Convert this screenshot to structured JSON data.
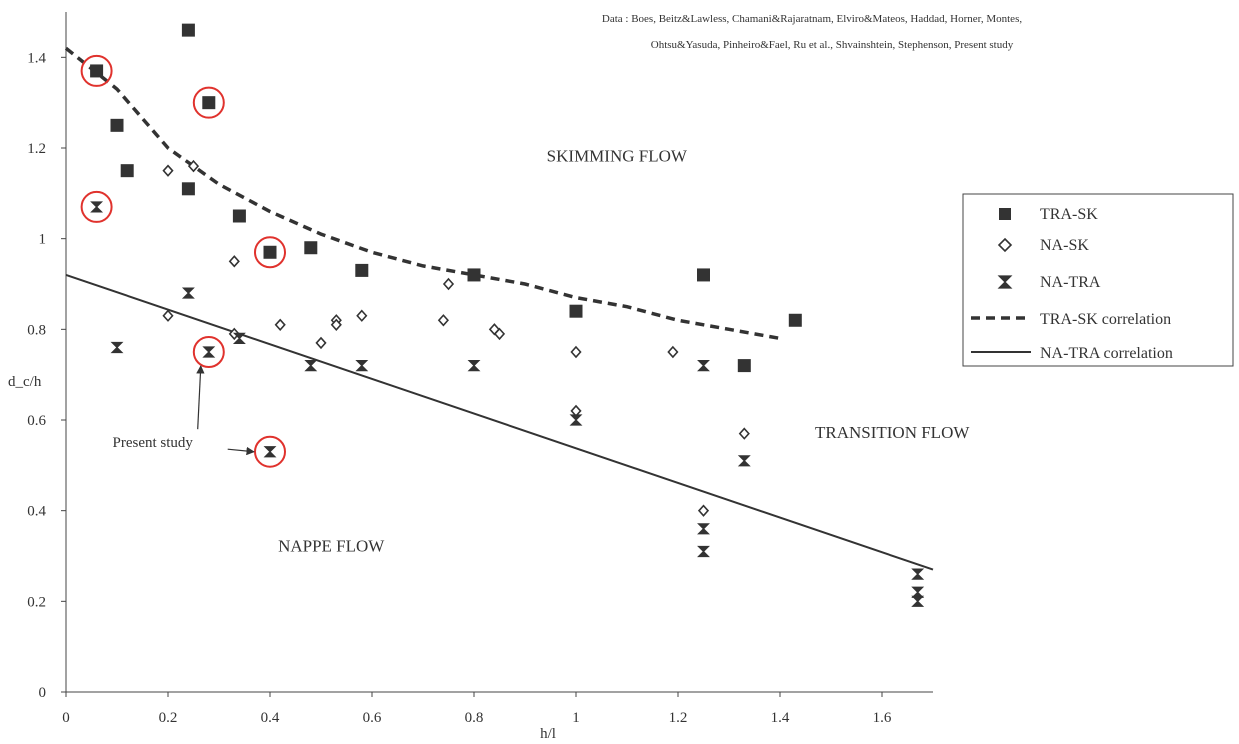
{
  "chart_data": {
    "type": "scatter",
    "xlabel": "h/l",
    "ylabel": "d_c/h",
    "xlim": [
      0,
      1.7
    ],
    "ylim": [
      0,
      1.5
    ],
    "x_ticks": [
      "0",
      "0.2",
      "0.4",
      "0.6",
      "0.8",
      "1",
      "1.2",
      "1.4",
      "1.6"
    ],
    "y_ticks": [
      "0",
      "0.2",
      "0.4",
      "0.6",
      "0.8",
      "1",
      "1.2",
      "1.4"
    ],
    "data_note_lines": [
      "Data : Boes, Beitz&Lawless, Chamani&Rajaratnam, Elviro&Mateos, Haddad, Horner, Montes,",
      "Ohtsu&Yasuda, Pinheiro&Fael, Ru et al., Shvainshtein, Stephenson, Present study"
    ],
    "regions": [
      {
        "label": "SKIMMING FLOW",
        "x": 1.08,
        "y": 1.17
      },
      {
        "label": "TRANSITION FLOW",
        "x": 1.62,
        "y": 0.56
      },
      {
        "label": "NAPPE FLOW",
        "x": 0.52,
        "y": 0.31
      }
    ],
    "annotation": {
      "label": "Present study",
      "x": 0.17,
      "y": 0.54
    },
    "series": [
      {
        "name": "TRA-SK",
        "marker": "filled-square",
        "points": [
          {
            "x": 0.06,
            "y": 1.37
          },
          {
            "x": 0.24,
            "y": 1.46
          },
          {
            "x": 0.1,
            "y": 1.25
          },
          {
            "x": 0.12,
            "y": 1.15
          },
          {
            "x": 0.24,
            "y": 1.11
          },
          {
            "x": 0.28,
            "y": 1.3
          },
          {
            "x": 0.34,
            "y": 1.05
          },
          {
            "x": 0.4,
            "y": 0.97
          },
          {
            "x": 0.48,
            "y": 0.98
          },
          {
            "x": 0.58,
            "y": 0.93
          },
          {
            "x": 0.8,
            "y": 0.92
          },
          {
            "x": 1.0,
            "y": 0.84
          },
          {
            "x": 1.25,
            "y": 0.92
          },
          {
            "x": 1.33,
            "y": 0.72
          },
          {
            "x": 1.43,
            "y": 0.82
          }
        ]
      },
      {
        "name": "NA-SK",
        "marker": "open-diamond",
        "points": [
          {
            "x": 0.2,
            "y": 1.15
          },
          {
            "x": 0.25,
            "y": 1.16
          },
          {
            "x": 0.33,
            "y": 0.95
          },
          {
            "x": 0.2,
            "y": 0.83
          },
          {
            "x": 0.33,
            "y": 0.79
          },
          {
            "x": 0.42,
            "y": 0.81
          },
          {
            "x": 0.5,
            "y": 0.77
          },
          {
            "x": 0.53,
            "y": 0.82
          },
          {
            "x": 0.53,
            "y": 0.81
          },
          {
            "x": 0.58,
            "y": 0.83
          },
          {
            "x": 0.74,
            "y": 0.82
          },
          {
            "x": 0.75,
            "y": 0.9
          },
          {
            "x": 0.84,
            "y": 0.8
          },
          {
            "x": 0.85,
            "y": 0.79
          },
          {
            "x": 1.0,
            "y": 0.75
          },
          {
            "x": 1.0,
            "y": 0.62
          },
          {
            "x": 1.19,
            "y": 0.75
          },
          {
            "x": 1.25,
            "y": 0.4
          },
          {
            "x": 1.33,
            "y": 0.57
          }
        ]
      },
      {
        "name": "NA-TRA",
        "marker": "hourglass",
        "points": [
          {
            "x": 0.06,
            "y": 1.07
          },
          {
            "x": 0.1,
            "y": 0.76
          },
          {
            "x": 0.24,
            "y": 0.88
          },
          {
            "x": 0.28,
            "y": 0.75
          },
          {
            "x": 0.34,
            "y": 0.78
          },
          {
            "x": 0.4,
            "y": 0.53
          },
          {
            "x": 0.48,
            "y": 0.72
          },
          {
            "x": 0.58,
            "y": 0.72
          },
          {
            "x": 0.8,
            "y": 0.72
          },
          {
            "x": 1.0,
            "y": 0.6
          },
          {
            "x": 1.25,
            "y": 0.72
          },
          {
            "x": 1.25,
            "y": 0.36
          },
          {
            "x": 1.25,
            "y": 0.31
          },
          {
            "x": 1.33,
            "y": 0.51
          },
          {
            "x": 1.67,
            "y": 0.26
          },
          {
            "x": 1.67,
            "y": 0.22
          },
          {
            "x": 1.67,
            "y": 0.2
          }
        ]
      },
      {
        "name": "TRA-SK correlation",
        "style": "dashed",
        "points": [
          {
            "x": 0.0,
            "y": 1.42
          },
          {
            "x": 0.1,
            "y": 1.33
          },
          {
            "x": 0.2,
            "y": 1.2
          },
          {
            "x": 0.3,
            "y": 1.12
          },
          {
            "x": 0.4,
            "y": 1.06
          },
          {
            "x": 0.5,
            "y": 1.01
          },
          {
            "x": 0.6,
            "y": 0.97
          },
          {
            "x": 0.7,
            "y": 0.94
          },
          {
            "x": 0.8,
            "y": 0.92
          },
          {
            "x": 0.9,
            "y": 0.9
          },
          {
            "x": 1.0,
            "y": 0.87
          },
          {
            "x": 1.1,
            "y": 0.85
          },
          {
            "x": 1.2,
            "y": 0.82
          },
          {
            "x": 1.3,
            "y": 0.8
          },
          {
            "x": 1.4,
            "y": 0.78
          }
        ]
      },
      {
        "name": "NA-TRA correlation",
        "style": "solid",
        "points": [
          {
            "x": 0.0,
            "y": 0.92
          },
          {
            "x": 1.7,
            "y": 0.27
          }
        ]
      }
    ],
    "highlighted_points": [
      {
        "x": 0.06,
        "y": 1.37
      },
      {
        "x": 0.28,
        "y": 1.3
      },
      {
        "x": 0.06,
        "y": 1.07
      },
      {
        "x": 0.4,
        "y": 0.97
      },
      {
        "x": 0.28,
        "y": 0.75
      },
      {
        "x": 0.4,
        "y": 0.53
      }
    ],
    "legend_position": "right",
    "grid": false,
    "colors": {
      "axis": "#444444",
      "text": "#333333",
      "marker": "#333333",
      "highlight": "#e0322d"
    }
  }
}
